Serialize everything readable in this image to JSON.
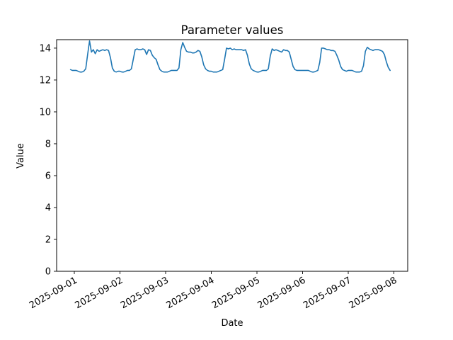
{
  "figure": {
    "title": "Parameter values",
    "xlabel": "Date",
    "ylabel": "Value"
  },
  "chart_data": {
    "type": "line",
    "title": "Parameter values",
    "xlabel": "Date",
    "ylabel": "Value",
    "grid": false,
    "legend": "none",
    "line_color": "#1f77b4",
    "line_width": 1.6,
    "x_axis": {
      "tick_labels": [
        "2025-09-01",
        "2025-09-02",
        "2025-09-03",
        "2025-09-04",
        "2025-09-05",
        "2025-09-06",
        "2025-09-07",
        "2025-09-08"
      ],
      "tick_hours_from_2025_09_01": [
        0,
        24,
        48,
        72,
        96,
        120,
        144,
        168
      ],
      "label_rotation_deg": 30,
      "xlim_hours": [
        -9.3,
        175.25
      ]
    },
    "y_axis": {
      "ticks": [
        0,
        2,
        4,
        6,
        8,
        10,
        12,
        14
      ],
      "ylim": [
        0,
        14.53
      ]
    },
    "series": [
      {
        "name": "parameter-values",
        "start": "2025-08-31 22:00",
        "interval_hours": 1,
        "start_offset_hours": -2,
        "values": [
          12.65,
          12.6,
          12.6,
          12.6,
          12.55,
          12.5,
          12.5,
          12.55,
          12.7,
          13.6,
          14.45,
          13.75,
          13.9,
          13.65,
          13.9,
          13.8,
          13.85,
          13.9,
          13.85,
          13.9,
          13.85,
          13.4,
          12.75,
          12.55,
          12.5,
          12.55,
          12.55,
          12.5,
          12.5,
          12.55,
          12.6,
          12.6,
          12.7,
          13.3,
          13.9,
          13.95,
          13.9,
          13.9,
          13.95,
          13.9,
          13.6,
          13.9,
          13.85,
          13.55,
          13.4,
          13.3,
          12.95,
          12.65,
          12.55,
          12.5,
          12.5,
          12.5,
          12.55,
          12.6,
          12.6,
          12.6,
          12.6,
          12.75,
          13.9,
          14.35,
          14.05,
          13.8,
          13.75,
          13.75,
          13.7,
          13.7,
          13.75,
          13.85,
          13.8,
          13.45,
          12.95,
          12.7,
          12.6,
          12.55,
          12.55,
          12.5,
          12.5,
          12.5,
          12.55,
          12.6,
          12.65,
          13.3,
          14.0,
          13.95,
          14.0,
          13.9,
          13.95,
          13.9,
          13.9,
          13.9,
          13.9,
          13.85,
          13.9,
          13.55,
          13.0,
          12.7,
          12.6,
          12.55,
          12.5,
          12.5,
          12.55,
          12.6,
          12.6,
          12.6,
          12.7,
          13.5,
          13.95,
          13.85,
          13.9,
          13.85,
          13.8,
          13.75,
          13.9,
          13.85,
          13.85,
          13.75,
          13.3,
          12.85,
          12.65,
          12.6,
          12.6,
          12.6,
          12.6,
          12.6,
          12.6,
          12.6,
          12.55,
          12.5,
          12.5,
          12.55,
          12.6,
          13.1,
          14.0,
          14.0,
          13.95,
          13.9,
          13.9,
          13.85,
          13.85,
          13.8,
          13.55,
          13.25,
          12.85,
          12.65,
          12.6,
          12.55,
          12.6,
          12.6,
          12.6,
          12.55,
          12.5,
          12.5,
          12.5,
          12.55,
          12.9,
          13.8,
          14.05,
          13.95,
          13.9,
          13.85,
          13.9,
          13.9,
          13.9,
          13.85,
          13.8,
          13.6,
          13.15,
          12.8,
          12.6
        ]
      }
    ]
  }
}
